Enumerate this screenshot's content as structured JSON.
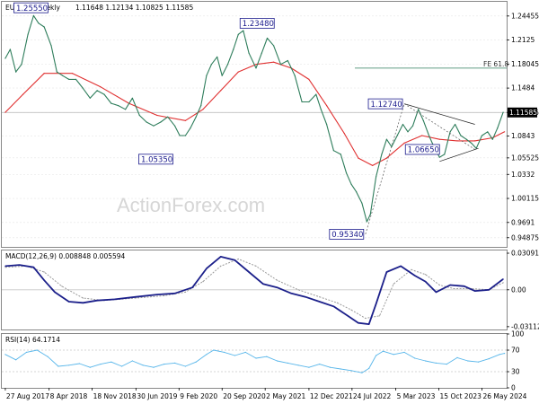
{
  "header": {
    "symbol": "EURUSD,Weekly",
    "ohlc": "1.11648 1.12134 1.10825 1.11585"
  },
  "watermark": "ActionForex.com",
  "colors": {
    "price": "#2e7d5b",
    "ma": "#e03030",
    "macd": "#1b1f8a",
    "signal": "#9a9a9a",
    "rsi": "#58b6ea",
    "box": "#1a1a8c",
    "fe_line": "#2e7d5b"
  },
  "chart_data": [
    {
      "type": "line",
      "panel": "price",
      "xlim": [
        2017.6,
        2024.75
      ],
      "ylim": [
        0.9365,
        1.2635
      ],
      "y_ticks": [
        1.24455,
        1.2125,
        1.18045,
        1.1484,
        1.11585,
        1.0843,
        1.05525,
        1.0332,
        1.00115,
        0.9691,
        0.94875
      ],
      "y_tick_labels": [
        "1.24455",
        "1.2125",
        "1.18045",
        "1.1484",
        "1.11585",
        "1.0843",
        "1.05525",
        "1.0332",
        "1.00115",
        "0.9691",
        "0.94875"
      ],
      "current_price": 1.11585,
      "current_price_label": "1.11585",
      "series": [
        {
          "name": "",
          "x": [
            2017.65,
            2017.72,
            2017.8,
            2017.88,
            2017.97,
            2018.05,
            2018.12,
            2018.2,
            2018.3,
            2018.38,
            2018.46,
            2018.55,
            2018.65,
            2018.75,
            2018.85,
            2018.95,
            2019.05,
            2019.15,
            2019.25,
            2019.35,
            2019.45,
            2019.55,
            2019.65,
            2019.75,
            2019.85,
            2019.95,
            2020.05,
            2020.12,
            2020.2,
            2020.27,
            2020.35,
            2020.42,
            2020.5,
            2020.57,
            2020.65,
            2020.72,
            2020.8,
            2020.88,
            2020.95,
            2021.02,
            2021.1,
            2021.2,
            2021.28,
            2021.36,
            2021.45,
            2021.55,
            2021.65,
            2021.75,
            2021.85,
            2021.95,
            2022.05,
            2022.12,
            2022.2,
            2022.3,
            2022.4,
            2022.48,
            2022.55,
            2022.62,
            2022.7,
            2022.77,
            2022.82,
            2022.9,
            2022.98,
            2023.05,
            2023.12,
            2023.2,
            2023.28,
            2023.35,
            2023.42,
            2023.5,
            2023.57,
            2023.65,
            2023.72,
            2023.8,
            2023.87,
            2023.95,
            2024.02,
            2024.1,
            2024.18,
            2024.25,
            2024.32,
            2024.4,
            2024.48,
            2024.55,
            2024.62,
            2024.7
          ],
          "values": [
            1.188,
            1.2,
            1.17,
            1.18,
            1.22,
            1.245,
            1.235,
            1.23,
            1.205,
            1.17,
            1.165,
            1.16,
            1.16,
            1.148,
            1.135,
            1.145,
            1.14,
            1.128,
            1.125,
            1.12,
            1.135,
            1.112,
            1.103,
            1.098,
            1.103,
            1.11,
            1.098,
            1.085,
            1.085,
            1.095,
            1.11,
            1.125,
            1.165,
            1.18,
            1.19,
            1.165,
            1.18,
            1.2,
            1.22,
            1.225,
            1.195,
            1.175,
            1.195,
            1.215,
            1.205,
            1.18,
            1.185,
            1.165,
            1.13,
            1.13,
            1.14,
            1.12,
            1.1,
            1.065,
            1.06,
            1.035,
            1.02,
            1.01,
            0.995,
            0.97,
            0.98,
            1.03,
            1.06,
            1.08,
            1.07,
            1.085,
            1.1,
            1.09,
            1.098,
            1.12,
            1.105,
            1.085,
            1.07,
            1.056,
            1.06,
            1.09,
            1.1,
            1.085,
            1.08,
            1.075,
            1.068,
            1.085,
            1.09,
            1.08,
            1.095,
            1.116
          ]
        },
        {
          "name": "",
          "x": [
            2017.65,
            2017.9,
            2018.2,
            2018.6,
            2019.0,
            2019.4,
            2019.8,
            2020.2,
            2020.45,
            2020.7,
            2020.95,
            2021.2,
            2021.45,
            2021.7,
            2021.95,
            2022.2,
            2022.45,
            2022.65,
            2022.85,
            2023.05,
            2023.3,
            2023.55,
            2023.8,
            2024.05,
            2024.3,
            2024.55,
            2024.72
          ],
          "values": [
            1.116,
            1.14,
            1.168,
            1.168,
            1.15,
            1.128,
            1.112,
            1.105,
            1.12,
            1.145,
            1.17,
            1.18,
            1.183,
            1.175,
            1.16,
            1.125,
            1.088,
            1.055,
            1.045,
            1.055,
            1.075,
            1.085,
            1.08,
            1.078,
            1.078,
            1.082,
            1.09
          ]
        }
      ],
      "annotations": [
        {
          "label": "1.25550",
          "x": 2018.0,
          "y": 1.2555
        },
        {
          "label": "1.23480",
          "x": 2021.0,
          "y": 1.2348
        },
        {
          "label": "1.05350",
          "x": 2020.1,
          "y": 1.0535
        },
        {
          "label": "1.12740",
          "x": 2023.3,
          "y": 1.1274
        },
        {
          "label": "1.06650",
          "x": 2023.85,
          "y": 1.0665
        },
        {
          "label": "0.95340",
          "x": 2022.75,
          "y": 0.9534
        },
        {
          "label": "FE 61.8",
          "x": 2024.75,
          "y": 1.175
        }
      ],
      "fe_level": 1.175
    },
    {
      "type": "line",
      "panel": "macd",
      "title": "MACD(12,26,9) 0.008848 0.005594",
      "xlim": [
        2017.6,
        2024.75
      ],
      "ylim": [
        -0.0335,
        0.0332
      ],
      "y_ticks": [
        0.030915,
        0.0,
        -0.031124
      ],
      "y_tick_labels": [
        "0.030915",
        "0.00",
        "-0.031124"
      ],
      "series": [
        {
          "name": "",
          "x": [
            2017.65,
            2017.85,
            2018.05,
            2018.2,
            2018.35,
            2018.55,
            2018.75,
            2018.95,
            2019.2,
            2019.5,
            2019.8,
            2020.05,
            2020.3,
            2020.5,
            2020.7,
            2020.9,
            2021.1,
            2021.3,
            2021.5,
            2021.7,
            2021.9,
            2022.1,
            2022.3,
            2022.5,
            2022.65,
            2022.8,
            2022.9,
            2023.05,
            2023.25,
            2023.45,
            2023.6,
            2023.75,
            2023.95,
            2024.15,
            2024.3,
            2024.5,
            2024.7
          ],
          "values": [
            0.02,
            0.021,
            0.019,
            0.008,
            -0.002,
            -0.01,
            -0.011,
            -0.009,
            -0.008,
            -0.006,
            -0.004,
            -0.003,
            0.002,
            0.018,
            0.028,
            0.025,
            0.015,
            0.005,
            0.002,
            -0.003,
            -0.006,
            -0.01,
            -0.014,
            -0.022,
            -0.028,
            -0.029,
            -0.012,
            0.015,
            0.02,
            0.012,
            0.007,
            -0.002,
            0.004,
            0.003,
            -0.001,
            0.0,
            0.009
          ]
        },
        {
          "name": "",
          "x": [
            2017.65,
            2017.95,
            2018.2,
            2018.45,
            2018.75,
            2019.05,
            2019.5,
            2019.9,
            2020.2,
            2020.45,
            2020.7,
            2020.95,
            2021.2,
            2021.5,
            2021.8,
            2022.1,
            2022.35,
            2022.55,
            2022.75,
            2022.95,
            2023.15,
            2023.4,
            2023.6,
            2023.8,
            2024.0,
            2024.25,
            2024.5,
            2024.7
          ],
          "values": [
            0.019,
            0.02,
            0.015,
            0.003,
            -0.007,
            -0.009,
            -0.007,
            -0.005,
            -0.002,
            0.007,
            0.02,
            0.026,
            0.02,
            0.008,
            0.0,
            -0.006,
            -0.011,
            -0.017,
            -0.024,
            -0.022,
            0.005,
            0.017,
            0.013,
            0.004,
            0.001,
            0.001,
            0.0,
            0.006
          ]
        }
      ]
    },
    {
      "type": "line",
      "panel": "rsi",
      "title": "RSI(14) 64.1714",
      "xlim": [
        2017.6,
        2024.75
      ],
      "ylim": [
        0,
        100
      ],
      "y_ticks": [
        100,
        70,
        30,
        0
      ],
      "y_tick_labels": [
        "100",
        "70",
        "30",
        "0"
      ],
      "series": [
        {
          "name": "",
          "x": [
            2017.65,
            2017.8,
            2017.95,
            2018.1,
            2018.25,
            2018.4,
            2018.55,
            2018.7,
            2018.85,
            2019.0,
            2019.15,
            2019.3,
            2019.45,
            2019.6,
            2019.75,
            2019.9,
            2020.05,
            2020.2,
            2020.35,
            2020.5,
            2020.6,
            2020.75,
            2020.9,
            2021.05,
            2021.2,
            2021.35,
            2021.5,
            2021.65,
            2021.8,
            2021.95,
            2022.1,
            2022.25,
            2022.4,
            2022.55,
            2022.7,
            2022.8,
            2022.9,
            2023.0,
            2023.15,
            2023.3,
            2023.45,
            2023.6,
            2023.75,
            2023.9,
            2024.05,
            2024.2,
            2024.35,
            2024.5,
            2024.65,
            2024.72
          ],
          "values": [
            62,
            52,
            66,
            70,
            58,
            40,
            42,
            45,
            38,
            44,
            48,
            40,
            50,
            42,
            38,
            44,
            46,
            40,
            48,
            62,
            70,
            66,
            60,
            66,
            55,
            58,
            50,
            46,
            42,
            38,
            44,
            38,
            35,
            32,
            28,
            36,
            60,
            68,
            62,
            66,
            55,
            50,
            46,
            44,
            56,
            50,
            48,
            54,
            62,
            64
          ]
        }
      ]
    },
    {
      "type": "line",
      "panel": "time-axis",
      "x_ticks": [
        2017.65,
        2018.27,
        2018.88,
        2019.5,
        2020.11,
        2020.72,
        2021.33,
        2021.95,
        2022.56,
        2023.18,
        2023.79,
        2024.4
      ],
      "x_tick_labels": [
        "27 Aug 2017",
        "8 Apr 2018",
        "18 Nov 2018",
        "30 Jun 2019",
        "9 Feb 2020",
        "20 Sep 2020",
        "2 May 2021",
        "12 Dec 2021",
        "24 Jul 2022",
        "5 Mar 2023",
        "15 Oct 2023",
        "26 May 2024"
      ]
    }
  ]
}
